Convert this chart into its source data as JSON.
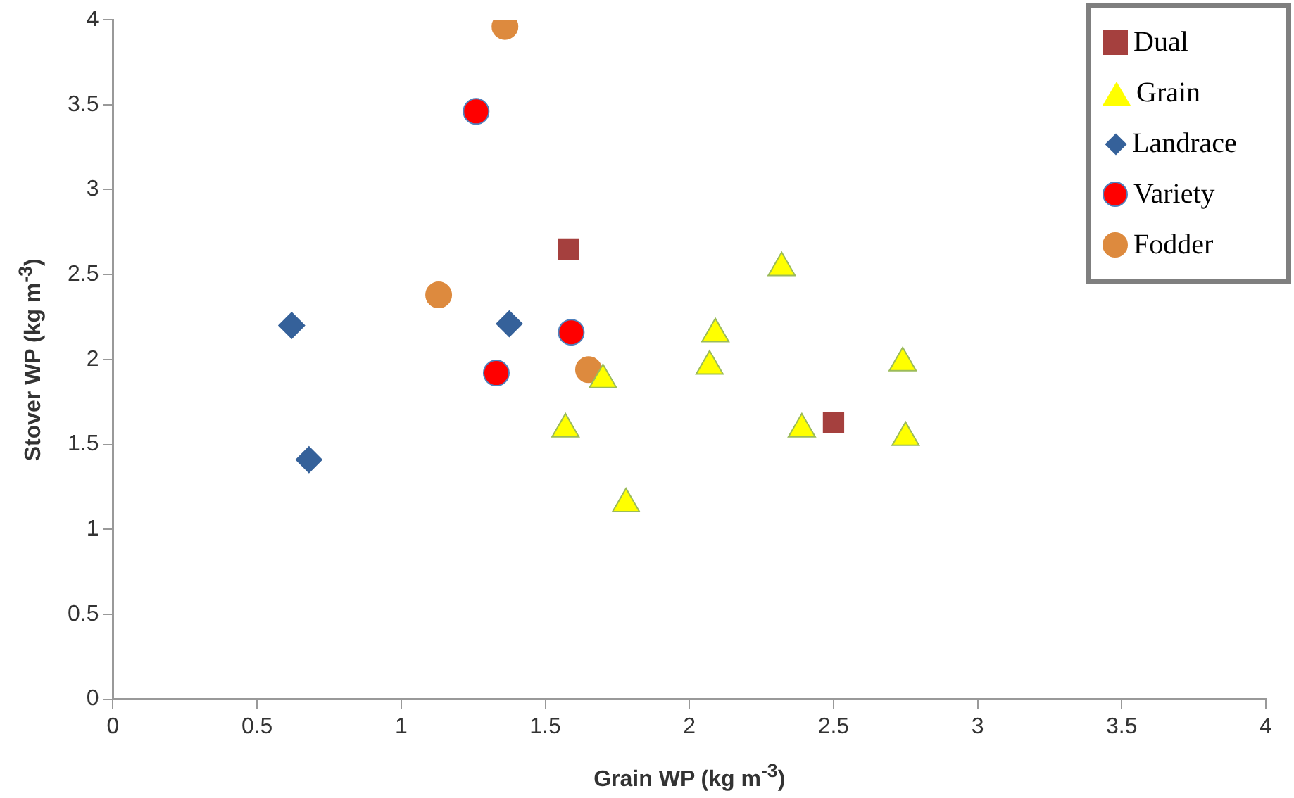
{
  "chart_data": {
    "type": "scatter",
    "xlabel": "Grain WP (kg m$^{-3}$)",
    "ylabel": "Stover WP (kg m$^{-3}$)",
    "xlim": [
      0,
      4
    ],
    "xticks": [
      0,
      0.5,
      1,
      1.5,
      2,
      2.5,
      3,
      3.5,
      4
    ],
    "ylim": [
      0,
      4
    ],
    "yticks": [
      0,
      0.5,
      1,
      1.5,
      2,
      2.5,
      3,
      3.5,
      4
    ],
    "grid": false,
    "legend": "top right",
    "series": [
      {
        "name": "Dual",
        "color": "#a5403e",
        "marker": "square",
        "x": [
          1.58,
          2.5
        ],
        "values": [
          2.65,
          1.63
        ]
      },
      {
        "name": "Grain",
        "color": "#ffff00",
        "marker": "triangle",
        "x": [
          1.7,
          1.57,
          1.78,
          2.09,
          2.07,
          2.32,
          2.39,
          2.74,
          2.75
        ],
        "values": [
          1.88,
          1.59,
          1.15,
          2.15,
          1.96,
          2.54,
          1.59,
          1.98,
          1.54
        ]
      },
      {
        "name": "Landrace",
        "color": "#35619a",
        "marker": "diamond",
        "x": [
          0.62,
          1.375,
          0.68
        ],
        "values": [
          2.2,
          2.21,
          1.41
        ]
      },
      {
        "name": "Variety",
        "color": "#ff0000",
        "marker": "circle",
        "x": [
          1.26,
          1.59,
          1.33
        ],
        "values": [
          3.46,
          2.16,
          1.92
        ]
      },
      {
        "name": "Fodder",
        "color": "#dd8a3e",
        "marker": "circle",
        "x": [
          1.36,
          1.13,
          1.65
        ],
        "values": [
          3.96,
          2.38,
          1.94
        ]
      }
    ]
  }
}
